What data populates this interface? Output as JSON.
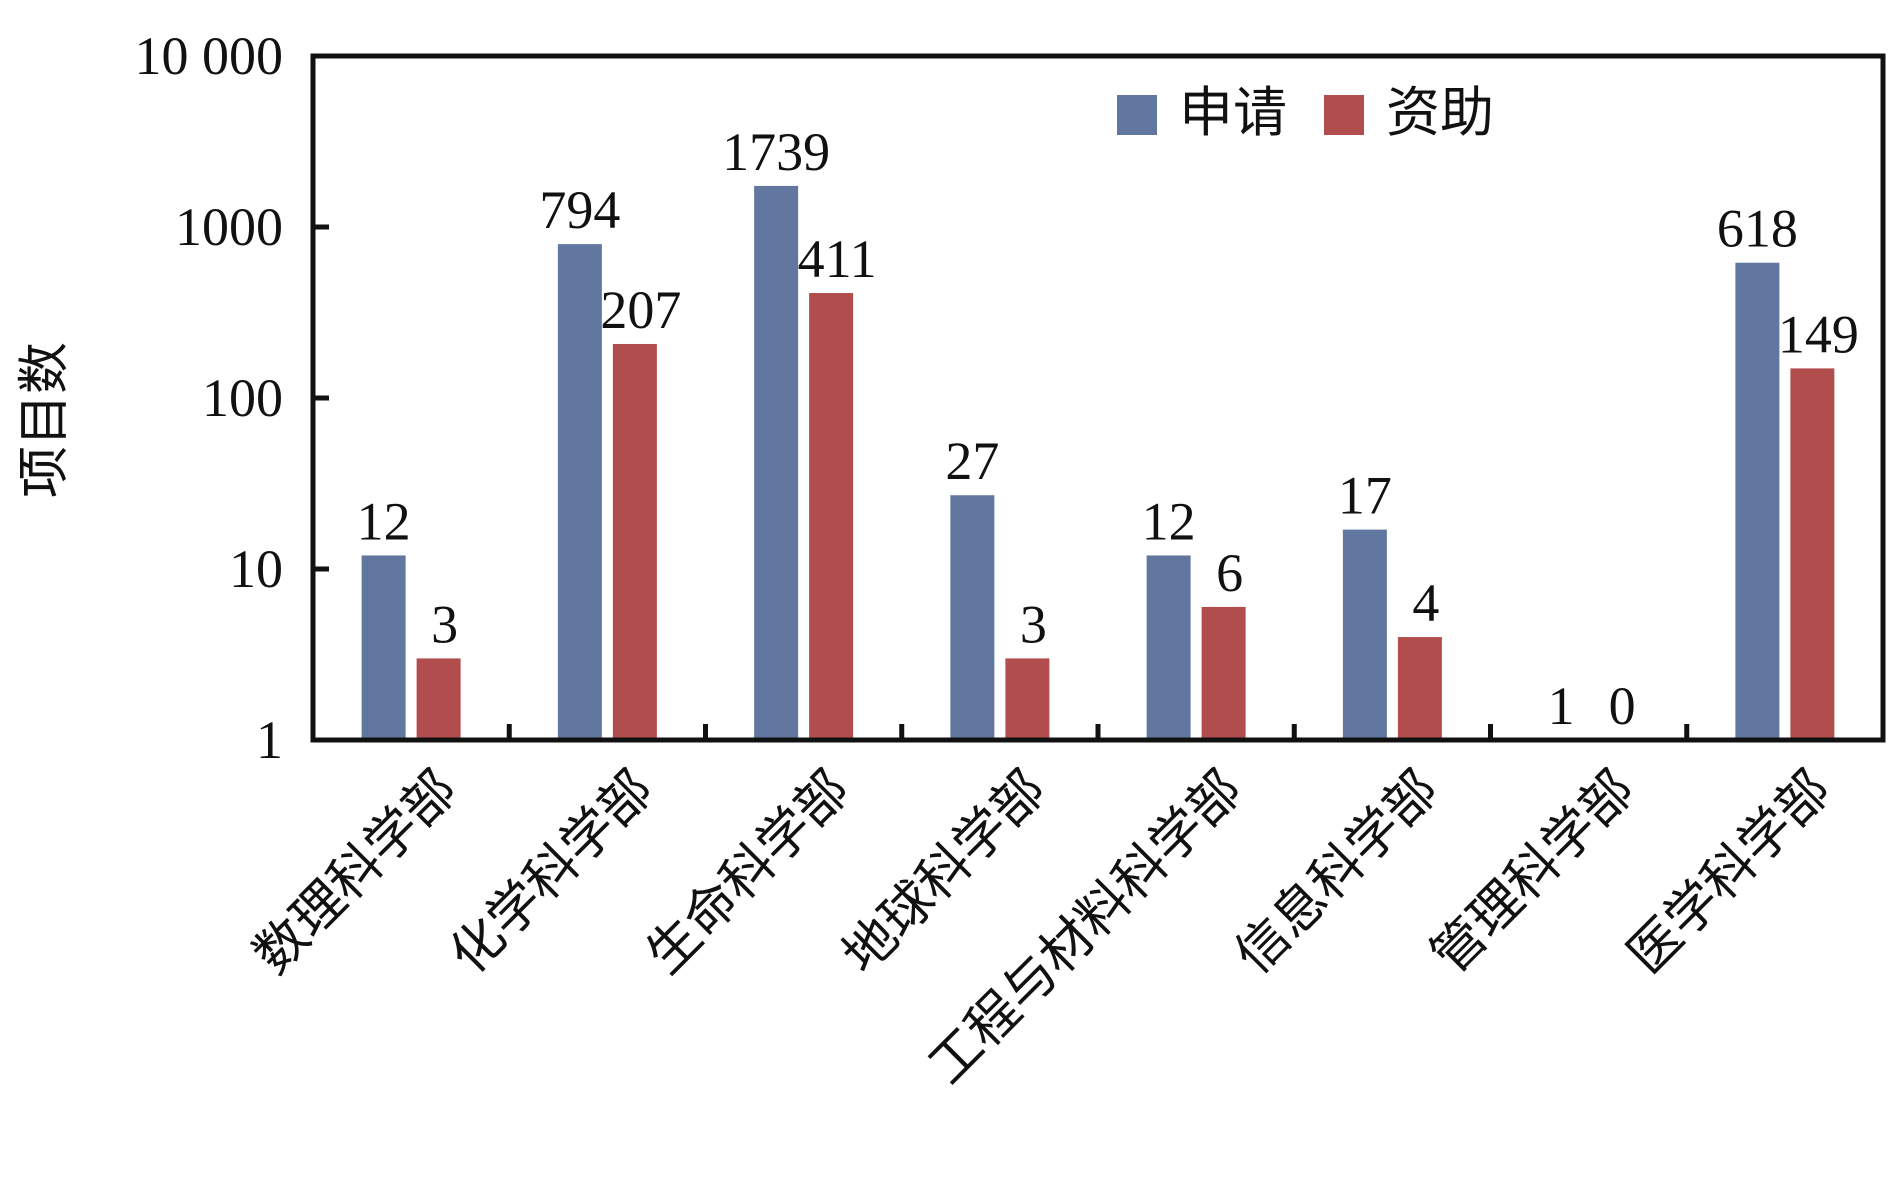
{
  "chart_data": {
    "type": "bar",
    "ylabel": "项目数",
    "yscale": "log",
    "ylim": [
      1,
      10000
    ],
    "yticks": [
      {
        "value": 1,
        "label": "1"
      },
      {
        "value": 10,
        "label": "10"
      },
      {
        "value": 100,
        "label": "100"
      },
      {
        "value": 1000,
        "label": "1000"
      },
      {
        "value": 10000,
        "label": "10 000"
      }
    ],
    "categories": [
      "数理科学部",
      "化学科学部",
      "生命科学部",
      "地球科学部",
      "工程与材料科学部",
      "信息科学部",
      "管理科学部",
      "医学科学部"
    ],
    "series": [
      {
        "name": "申请",
        "color": "#61779f",
        "values": [
          12,
          794,
          1739,
          27,
          12,
          17,
          1,
          618
        ],
        "labels": [
          "12",
          "794",
          "1739",
          "27",
          "12",
          "17",
          "1",
          "618"
        ]
      },
      {
        "name": "资助",
        "color": "#b24d4e",
        "values": [
          3,
          207,
          411,
          3,
          6,
          4,
          0,
          149
        ],
        "labels": [
          "3",
          "207",
          "411",
          "3",
          "6",
          "4",
          "0",
          "149"
        ]
      }
    ],
    "legend": {
      "position": "top-right"
    },
    "grid": false
  }
}
